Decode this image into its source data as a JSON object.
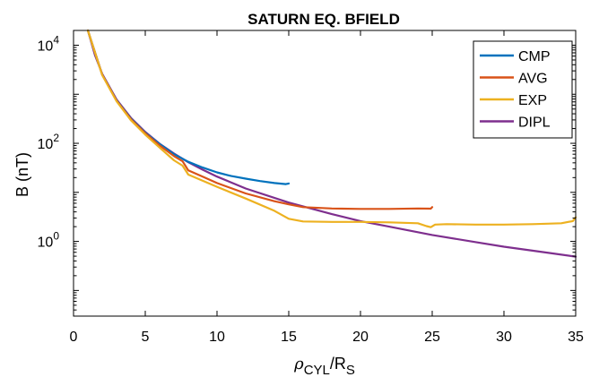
{
  "chart_data": {
    "type": "line",
    "title": "SATURN EQ. BFIELD",
    "ylabel": "B (nT)",
    "xlabel": {
      "main": "ρ",
      "main_sub": "CYL",
      "sep": "/R",
      "sep_sub": "S"
    },
    "xlim": [
      0,
      35
    ],
    "ylim": [
      0.03,
      20000
    ],
    "yscale": "log",
    "grid": false,
    "legend_position": "top-right",
    "x_ticks": [
      0,
      5,
      10,
      15,
      20,
      25,
      30,
      35
    ],
    "x_tick_labels": [
      "0",
      "5",
      "10",
      "15",
      "20",
      "25",
      "30",
      "35"
    ],
    "y_ticks": [
      {
        "value": 1,
        "base": "10",
        "exp": "0"
      },
      {
        "value": 100,
        "base": "10",
        "exp": "2"
      },
      {
        "value": 10000,
        "base": "10",
        "exp": "4"
      }
    ],
    "series": [
      {
        "name": "DIPL",
        "color": "#7e2f8e",
        "points": [
          [
            1,
            20000
          ],
          [
            1.5,
            6200
          ],
          [
            2,
            2600
          ],
          [
            3,
            780
          ],
          [
            4,
            330
          ],
          [
            5,
            170
          ],
          [
            6,
            98
          ],
          [
            7,
            62
          ],
          [
            8,
            41
          ],
          [
            9,
            29
          ],
          [
            10,
            21
          ],
          [
            12,
            12
          ],
          [
            15,
            6.2
          ],
          [
            18,
            3.6
          ],
          [
            20,
            2.6
          ],
          [
            22,
            2.0
          ],
          [
            25,
            1.35
          ],
          [
            28,
            0.97
          ],
          [
            30,
            0.78
          ],
          [
            33,
            0.59
          ],
          [
            35,
            0.49
          ]
        ]
      },
      {
        "name": "CMP",
        "color": "#0072bd",
        "points": [
          [
            1,
            20000
          ],
          [
            2,
            2500
          ],
          [
            3,
            750
          ],
          [
            4,
            320
          ],
          [
            5,
            165
          ],
          [
            6,
            97
          ],
          [
            7,
            60
          ],
          [
            8,
            42
          ],
          [
            9,
            32
          ],
          [
            10,
            25.5
          ],
          [
            11,
            21.5
          ],
          [
            12,
            19
          ],
          [
            13,
            17
          ],
          [
            14,
            15.5
          ],
          [
            14.8,
            14.7
          ],
          [
            15,
            15.2
          ]
        ]
      },
      {
        "name": "AVG",
        "color": "#d95319",
        "points": [
          [
            1,
            20000
          ],
          [
            2,
            2500
          ],
          [
            3,
            740
          ],
          [
            4,
            310
          ],
          [
            5,
            160
          ],
          [
            6,
            90
          ],
          [
            7,
            55
          ],
          [
            7.6,
            43
          ],
          [
            8,
            28
          ],
          [
            9,
            21
          ],
          [
            10,
            15.5
          ],
          [
            12,
            9.5
          ],
          [
            14,
            6.6
          ],
          [
            15,
            5.7
          ],
          [
            16,
            5.0
          ],
          [
            18,
            4.7
          ],
          [
            20,
            4.6
          ],
          [
            22,
            4.6
          ],
          [
            24,
            4.7
          ],
          [
            24.9,
            4.65
          ],
          [
            25,
            5.0
          ]
        ]
      },
      {
        "name": "EXP",
        "color": "#edb120",
        "points": [
          [
            1,
            20000
          ],
          [
            2,
            2450
          ],
          [
            3,
            720
          ],
          [
            4,
            295
          ],
          [
            5,
            150
          ],
          [
            6,
            82
          ],
          [
            7,
            45
          ],
          [
            7.6,
            35
          ],
          [
            8,
            23
          ],
          [
            10,
            13
          ],
          [
            12,
            7.5
          ],
          [
            14,
            4.2
          ],
          [
            15,
            2.9
          ],
          [
            16,
            2.55
          ],
          [
            18,
            2.5
          ],
          [
            20,
            2.5
          ],
          [
            22,
            2.45
          ],
          [
            24,
            2.35
          ],
          [
            24.6,
            2.05
          ],
          [
            24.9,
            1.95
          ],
          [
            25.2,
            2.2
          ],
          [
            26,
            2.25
          ],
          [
            28,
            2.2
          ],
          [
            30,
            2.2
          ],
          [
            32,
            2.25
          ],
          [
            34,
            2.35
          ],
          [
            34.8,
            2.6
          ],
          [
            35,
            3.1
          ]
        ]
      }
    ],
    "legend": [
      {
        "name": "CMP",
        "color": "#0072bd"
      },
      {
        "name": "AVG",
        "color": "#d95319"
      },
      {
        "name": "EXP",
        "color": "#edb120"
      },
      {
        "name": "DIPL",
        "color": "#7e2f8e"
      }
    ]
  }
}
